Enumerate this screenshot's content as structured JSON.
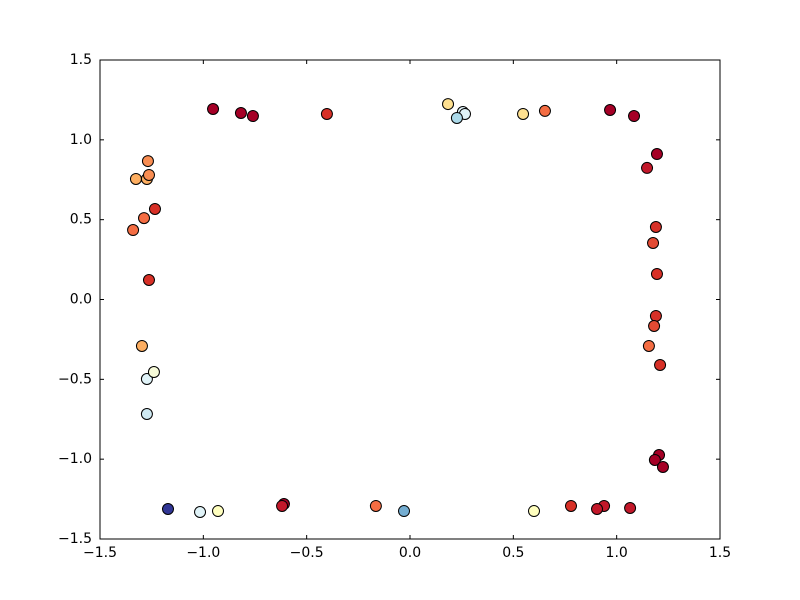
{
  "chart_data": {
    "type": "scatter",
    "series": [
      {
        "x": [
          -0.953,
          -0.818,
          -0.76,
          -0.402,
          0.184,
          0.256,
          0.266,
          0.227,
          0.547,
          0.653,
          0.968,
          1.084,
          1.195,
          1.147,
          1.19,
          1.176,
          1.195,
          1.19,
          1.181,
          1.156,
          1.21,
          1.205,
          1.185,
          1.224,
          1.065,
          0.939,
          0.905,
          0.779,
          0.6,
          -0.029,
          -0.165,
          -0.61,
          -0.619,
          -0.929,
          -1.016,
          -1.171,
          -1.273,
          -1.273,
          -1.239,
          -1.297,
          -1.263,
          -1.34,
          -1.287,
          -1.234,
          -1.326,
          -1.273,
          -1.263,
          -1.268
        ],
        "values": [
          1.193,
          1.168,
          1.149,
          1.162,
          1.224,
          1.174,
          1.162,
          1.137,
          1.162,
          1.181,
          1.187,
          1.149,
          0.911,
          0.824,
          0.454,
          0.354,
          0.16,
          -0.103,
          -0.166,
          -0.291,
          -0.41,
          -0.974,
          -1.005,
          -1.049,
          -1.306,
          -1.293,
          -1.312,
          -1.293,
          -1.325,
          -1.325,
          -1.293,
          -1.281,
          -1.293,
          -1.325,
          -1.331,
          -1.312,
          -0.717,
          -0.498,
          -0.454,
          -0.291,
          0.122,
          0.435,
          0.51,
          0.567,
          0.755,
          0.755,
          0.78,
          0.867
        ],
        "colors": [
          "#a50026",
          "#a50026",
          "#a50026",
          "#d73027",
          "#fee090",
          "#e0f3f8",
          "#e0f3f8",
          "#abd9e9",
          "#fee090",
          "#f46d43",
          "#a50026",
          "#a50026",
          "#a50026",
          "#c2182a",
          "#d73027",
          "#e34a33",
          "#d73027",
          "#d73027",
          "#e34a33",
          "#f46d43",
          "#d73027",
          "#a50026",
          "#a50026",
          "#a50026",
          "#c2182a",
          "#c2182a",
          "#c2182a",
          "#d73027",
          "#ffffbf",
          "#74add1",
          "#f46d43",
          "#a50026",
          "#c2182a",
          "#ffffbf",
          "#e0f3f8",
          "#313695",
          "#cfe9f2",
          "#e0f3f8",
          "#f7fbd9",
          "#fdae61",
          "#d73027",
          "#f46d43",
          "#f46d43",
          "#d73027",
          "#fdae61",
          "#fdae61",
          "#f88d52",
          "#f88d52"
        ]
      }
    ],
    "xlim": [
      -1.5,
      1.5
    ],
    "ylim": [
      -1.5,
      1.5
    ],
    "xticks": [
      {
        "value": -1.5,
        "label": "−1.5"
      },
      {
        "value": -1.0,
        "label": "−1.0"
      },
      {
        "value": -0.5,
        "label": "−0.5"
      },
      {
        "value": 0,
        "label": "0.0"
      },
      {
        "value": 0.5,
        "label": "0.5"
      },
      {
        "value": 1.0,
        "label": "1.0"
      },
      {
        "value": 1.5,
        "label": "1.5"
      }
    ],
    "yticks": [
      {
        "value": -1.5,
        "label": "−1.5"
      },
      {
        "value": -1.0,
        "label": "−1.0"
      },
      {
        "value": -0.5,
        "label": "−0.5"
      },
      {
        "value": 0,
        "label": "0.0"
      },
      {
        "value": 0.5,
        "label": "0.5"
      },
      {
        "value": 1.0,
        "label": "1.0"
      },
      {
        "value": 1.5,
        "label": "1.5"
      }
    ]
  }
}
